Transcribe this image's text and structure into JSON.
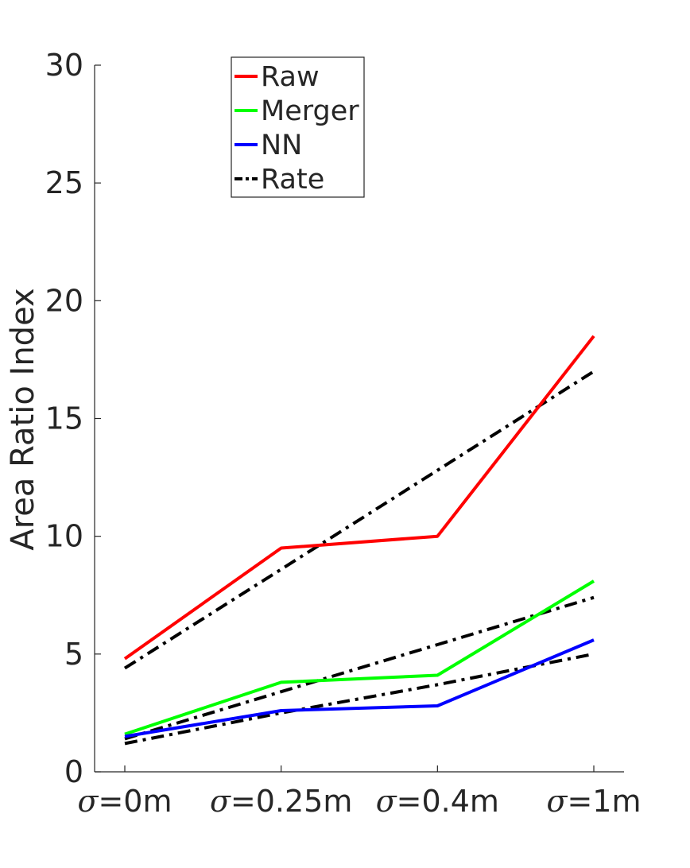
{
  "chart_data": {
    "type": "line",
    "title": "",
    "xlabel": "",
    "ylabel": "Area Ratio Index",
    "categories": [
      {
        "symbol": "σ",
        "text": "=0m"
      },
      {
        "symbol": "σ",
        "text": "=0.25m"
      },
      {
        "symbol": "σ",
        "text": "=0.4m"
      },
      {
        "symbol": "σ",
        "text": "=1m"
      }
    ],
    "ylim": [
      0,
      30
    ],
    "yticks": [
      0,
      5,
      10,
      15,
      20,
      25,
      30
    ],
    "grid": false,
    "legend_position": "top-center",
    "series": [
      {
        "name": "Raw",
        "color": "#ff0000",
        "style": "solid",
        "values": [
          4.8,
          9.5,
          10.0,
          18.5
        ]
      },
      {
        "name": "Merger",
        "color": "#00ff00",
        "style": "solid",
        "values": [
          1.6,
          3.8,
          4.1,
          8.1
        ]
      },
      {
        "name": "NN",
        "color": "#0000ff",
        "style": "solid",
        "values": [
          1.5,
          2.6,
          2.8,
          5.6
        ]
      }
    ],
    "rate_lines": [
      {
        "legend": "Rate",
        "color": "#000000",
        "style": "dashdot",
        "values": [
          4.4,
          8.6,
          12.8,
          17.0
        ]
      },
      {
        "legend": "Rate",
        "color": "#000000",
        "style": "dashdot",
        "values": [
          1.4,
          3.4,
          5.4,
          7.4
        ]
      },
      {
        "legend": "Rate",
        "color": "#000000",
        "style": "dashdot",
        "values": [
          1.2,
          2.5,
          3.7,
          5.0
        ]
      }
    ],
    "legend": [
      {
        "label": "Raw",
        "color": "#ff0000",
        "style": "solid"
      },
      {
        "label": "Merger",
        "color": "#00ff00",
        "style": "solid"
      },
      {
        "label": "NN",
        "color": "#0000ff",
        "style": "solid"
      },
      {
        "label": "Rate",
        "color": "#000000",
        "style": "dashdot"
      }
    ]
  }
}
